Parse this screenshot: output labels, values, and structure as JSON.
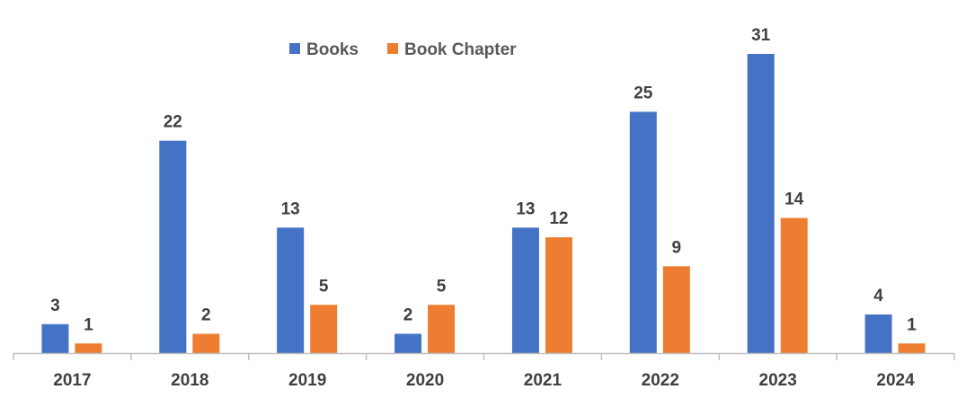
{
  "chart_data": {
    "type": "bar",
    "categories": [
      "2017",
      "2018",
      "2019",
      "2020",
      "2021",
      "2022",
      "2023",
      "2024"
    ],
    "series": [
      {
        "name": "Books",
        "color": "#4472C4",
        "values": [
          3,
          22,
          13,
          2,
          13,
          25,
          31,
          4
        ]
      },
      {
        "name": "Book Chapter",
        "color": "#ED7D31",
        "values": [
          1,
          2,
          5,
          5,
          12,
          9,
          14,
          1
        ]
      }
    ],
    "legend_position": "top-center",
    "grid": false,
    "ylim": [
      0,
      31
    ],
    "data_labels": true
  }
}
